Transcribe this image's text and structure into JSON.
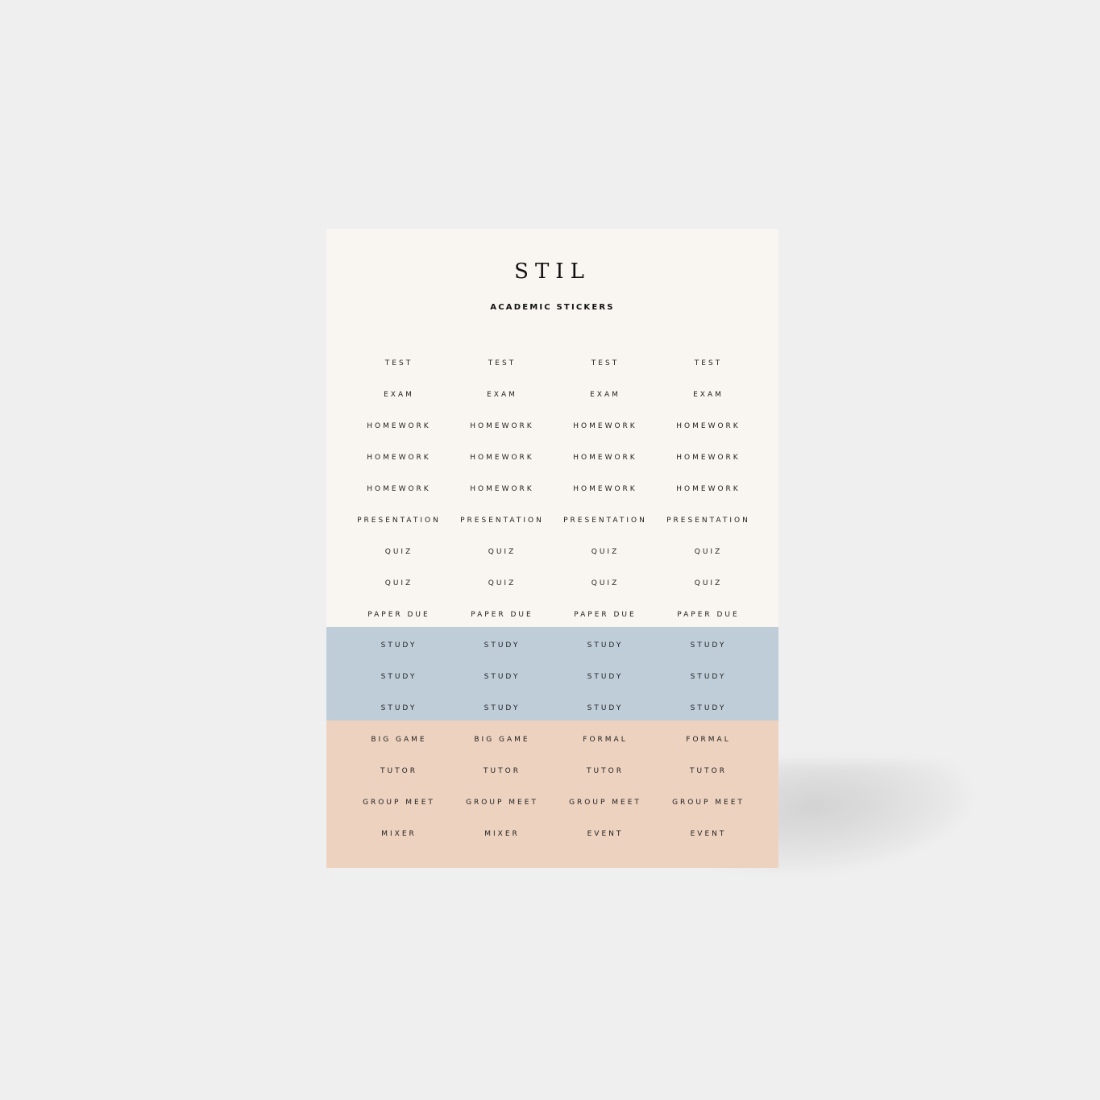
{
  "sheet": {
    "brand": "STIL",
    "subtitle": "ACADEMIC STICKERS",
    "colors": {
      "background": "#efefef",
      "sheet": "#f9f5f0",
      "blue_band": "#bfcdd8",
      "peach_band": "#edd2bf",
      "text": "#222222"
    },
    "rows": [
      {
        "cells": [
          "TEST",
          "TEST",
          "TEST",
          "TEST"
        ]
      },
      {
        "cells": [
          "EXAM",
          "EXAM",
          "EXAM",
          "EXAM"
        ]
      },
      {
        "cells": [
          "HOMEWORK",
          "HOMEWORK",
          "HOMEWORK",
          "HOMEWORK"
        ]
      },
      {
        "cells": [
          "HOMEWORK",
          "HOMEWORK",
          "HOMEWORK",
          "HOMEWORK"
        ]
      },
      {
        "cells": [
          "HOMEWORK",
          "HOMEWORK",
          "HOMEWORK",
          "HOMEWORK"
        ]
      },
      {
        "cells": [
          "PRESENTATION",
          "PRESENTATION",
          "PRESENTATION",
          "PRESENTATION"
        ]
      },
      {
        "cells": [
          "QUIZ",
          "QUIZ",
          "QUIZ",
          "QUIZ"
        ]
      },
      {
        "cells": [
          "QUIZ",
          "QUIZ",
          "QUIZ",
          "QUIZ"
        ]
      },
      {
        "cells": [
          "PAPER DUE",
          "PAPER DUE",
          "PAPER DUE",
          "PAPER DUE"
        ]
      },
      {
        "cells": [
          "STUDY",
          "STUDY",
          "STUDY",
          "STUDY"
        ]
      },
      {
        "cells": [
          "STUDY",
          "STUDY",
          "STUDY",
          "STUDY"
        ]
      },
      {
        "cells": [
          "STUDY",
          "STUDY",
          "STUDY",
          "STUDY"
        ]
      },
      {
        "cells": [
          "BIG GAME",
          "BIG GAME",
          "FORMAL",
          "FORMAL"
        ]
      },
      {
        "cells": [
          "TUTOR",
          "TUTOR",
          "TUTOR",
          "TUTOR"
        ]
      },
      {
        "cells": [
          "GROUP MEET",
          "GROUP MEET",
          "GROUP MEET",
          "GROUP MEET"
        ]
      },
      {
        "cells": [
          "MIXER",
          "MIXER",
          "EVENT",
          "EVENT"
        ]
      }
    ]
  }
}
